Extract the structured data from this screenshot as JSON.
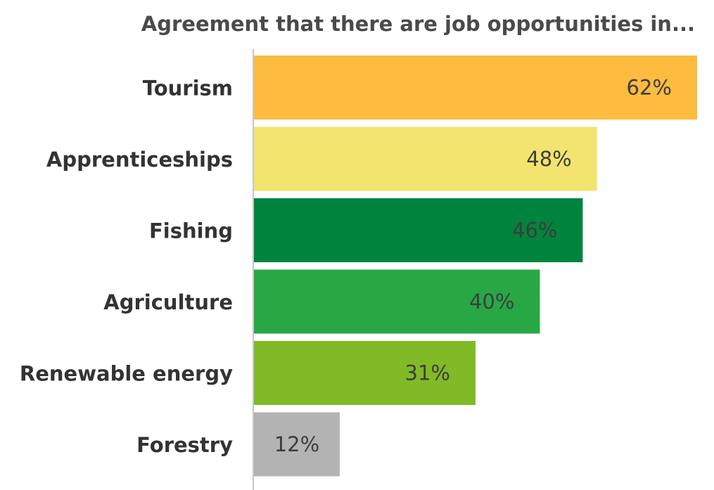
{
  "chart_data": {
    "type": "bar",
    "orientation": "horizontal",
    "title": "Agreement that there are job opportunities in...",
    "categories": [
      "Tourism",
      "Apprenticeships",
      "Fishing",
      "Agriculture",
      "Renewable energy",
      "Forestry"
    ],
    "values": [
      62,
      48,
      46,
      40,
      31,
      12
    ],
    "value_labels": [
      "62%",
      "48%",
      "46%",
      "40%",
      "31%",
      "12%"
    ],
    "bar_colors": [
      "#FDBB40",
      "#F2E46E",
      "#00843D",
      "#27A845",
      "#80BA27",
      "#B3B3B3"
    ],
    "xlabel": "",
    "ylabel": "",
    "xlim": [
      0,
      62
    ],
    "grid": false,
    "legend": "none"
  }
}
